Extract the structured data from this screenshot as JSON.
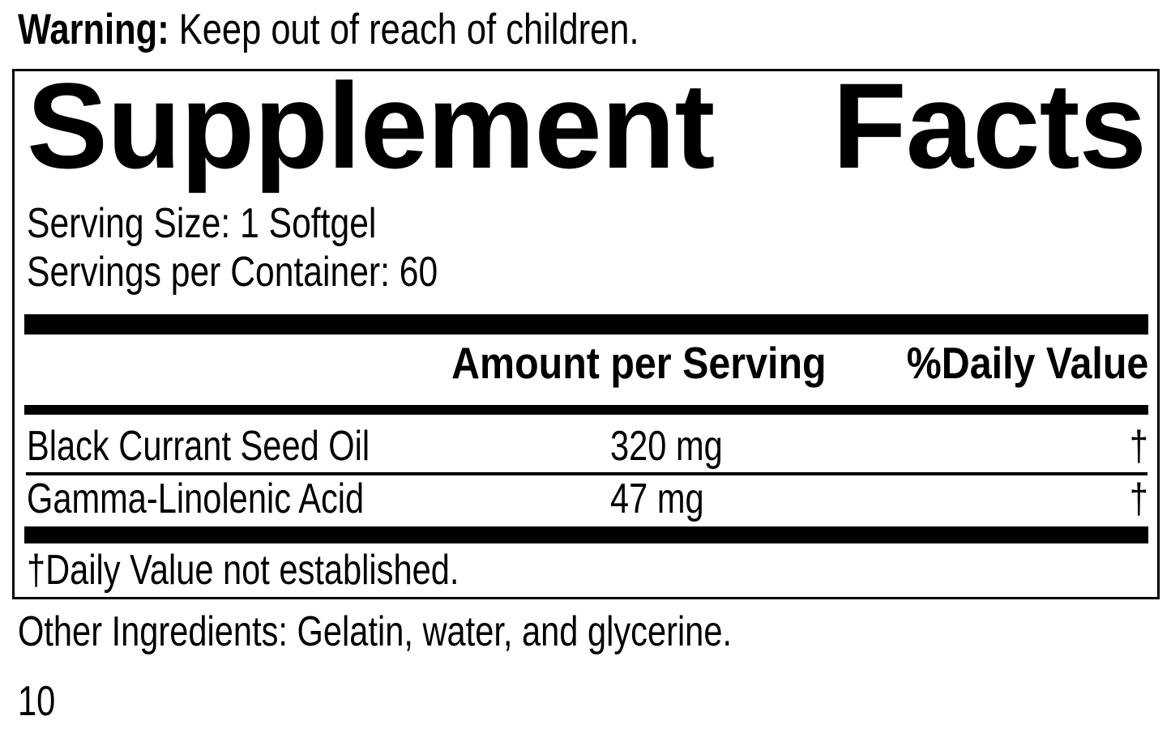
{
  "warning": {
    "prefix": "Warning:",
    "text": " Keep out of reach of children."
  },
  "panel": {
    "title": {
      "word1": "Supplement",
      "word2": "Facts"
    },
    "serving_size": "Serving Size: 1 Softgel",
    "servings_per_container": "Servings per Container: 60",
    "columns": {
      "amount": "Amount per Serving",
      "daily_value": "%Daily Value"
    },
    "rows": [
      {
        "name": "Black Currant Seed Oil",
        "amount": "320 mg",
        "daily_value": "†"
      },
      {
        "name": "Gamma-Linolenic Acid",
        "amount": "47 mg",
        "daily_value": "†"
      }
    ],
    "footnote": "†Daily Value not established."
  },
  "other_ingredients": "Other Ingredients: Gelatin, water, and glycerine.",
  "page_number": "10",
  "colors": {
    "ink": "#000000",
    "background": "#ffffff"
  }
}
